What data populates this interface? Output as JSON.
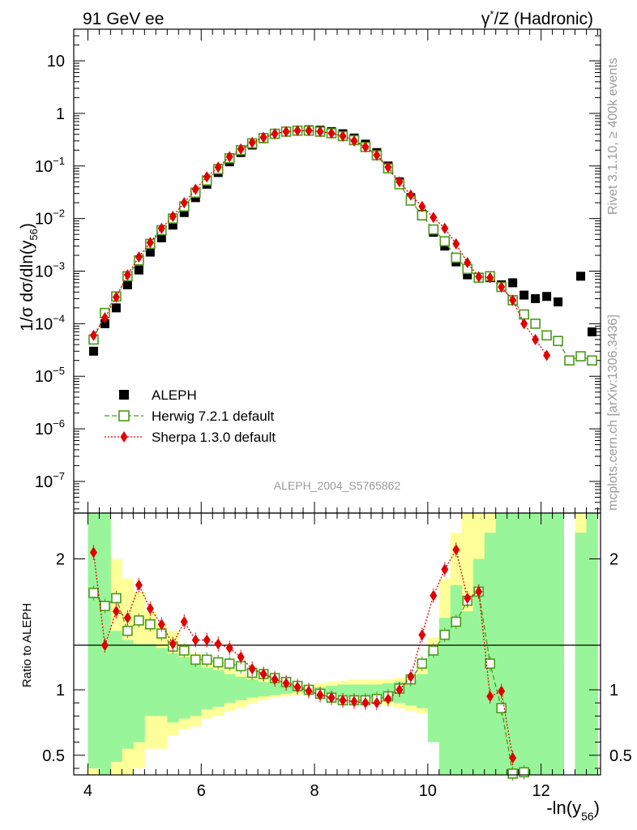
{
  "header": {
    "left": "91 GeV ee",
    "right_base": "γ",
    "right_sup": "*",
    "right_rest": "/Z (Hadronic)"
  },
  "side": {
    "rivet": "Rivet 3.1.10, ≥ 400k events",
    "site": "mcplots.cern.ch [arXiv:1306.3436]"
  },
  "analysis_tag": "ALEPH_2004_S5765862",
  "chart_data": [
    {
      "type": "scatter",
      "title": "",
      "ylabel": "1/σ dσ/dln(y56)",
      "ylabel_parts": {
        "main": "1/σ  dσ/dln(y",
        "sub": "56",
        "close": ")"
      },
      "yscale": "log",
      "xlim": [
        3.75,
        13.05
      ],
      "ylim": [
        2.5e-08,
        40
      ],
      "yticks": [
        {
          "v": 1e-07,
          "base": "10",
          "exp": "−7"
        },
        {
          "v": 1e-06,
          "base": "10",
          "exp": "−6"
        },
        {
          "v": 1e-05,
          "base": "10",
          "exp": "−5"
        },
        {
          "v": 0.0001,
          "base": "10",
          "exp": "−4"
        },
        {
          "v": 0.001,
          "base": "10",
          "exp": "−3"
        },
        {
          "v": 0.01,
          "base": "10",
          "exp": "−2"
        },
        {
          "v": 0.1,
          "base": "10",
          "exp": "−1"
        },
        {
          "v": 1,
          "base": "1",
          "exp": ""
        },
        {
          "v": 10,
          "base": "10",
          "exp": ""
        }
      ],
      "legend": [
        {
          "key": "aleph",
          "label": "ALEPH"
        },
        {
          "key": "herwig",
          "label": "Herwig 7.2.1 default"
        },
        {
          "key": "sherpa",
          "label": "Sherpa 1.3.0 default"
        }
      ],
      "series": [
        {
          "name": "ALEPH",
          "x": [
            4.1,
            4.3,
            4.5,
            4.7,
            4.9,
            5.1,
            5.3,
            5.5,
            5.7,
            5.9,
            6.1,
            6.3,
            6.5,
            6.7,
            6.9,
            7.1,
            7.3,
            7.5,
            7.7,
            7.9,
            8.1,
            8.3,
            8.5,
            8.7,
            8.9,
            9.1,
            9.3,
            9.5,
            9.7,
            9.9,
            10.1,
            10.3,
            10.5,
            10.7,
            10.9,
            11.1,
            11.3,
            11.5,
            11.7,
            11.9,
            12.1,
            12.3,
            12.7,
            12.9
          ],
          "y": [
            3e-05,
            0.0001,
            0.0002,
            0.00055,
            0.00105,
            0.0023,
            0.0043,
            0.0075,
            0.013,
            0.025,
            0.045,
            0.075,
            0.12,
            0.18,
            0.25,
            0.33,
            0.4,
            0.45,
            0.48,
            0.49,
            0.48,
            0.45,
            0.41,
            0.34,
            0.26,
            0.18,
            0.1,
            0.05,
            0.025,
            0.012,
            0.0055,
            0.003,
            0.0015,
            0.00085,
            0.00075,
            0.00075,
            0.00055,
            0.0006,
            0.00035,
            0.0003,
            0.00033,
            0.00026,
            0.0008,
            7e-05
          ]
        },
        {
          "name": "Herwig 7.2.1 default",
          "x": [
            4.1,
            4.3,
            4.5,
            4.7,
            4.9,
            5.1,
            5.3,
            5.5,
            5.7,
            5.9,
            6.1,
            6.3,
            6.5,
            6.7,
            6.9,
            7.1,
            7.3,
            7.5,
            7.7,
            7.9,
            8.1,
            8.3,
            8.5,
            8.7,
            8.9,
            9.1,
            9.3,
            9.5,
            9.7,
            9.9,
            10.1,
            10.3,
            10.5,
            10.7,
            10.9,
            11.1,
            11.3,
            11.5,
            11.7,
            11.9,
            12.1,
            12.3,
            12.5,
            12.7,
            12.9
          ],
          "y": [
            5e-05,
            0.00016,
            0.00033,
            0.0008,
            0.0016,
            0.0033,
            0.006,
            0.01,
            0.017,
            0.031,
            0.053,
            0.087,
            0.14,
            0.2,
            0.27,
            0.34,
            0.41,
            0.45,
            0.47,
            0.47,
            0.45,
            0.42,
            0.37,
            0.31,
            0.23,
            0.16,
            0.09,
            0.045,
            0.022,
            0.0115,
            0.0062,
            0.0037,
            0.0018,
            0.0011,
            0.00075,
            0.0008,
            0.0005,
            0.00028,
            0.00015,
            0.0001,
            6e-05,
            4.7e-05,
            2e-05,
            2.4e-05,
            2e-05
          ]
        },
        {
          "name": "Sherpa 1.3.0 default",
          "x": [
            4.1,
            4.3,
            4.5,
            4.7,
            4.9,
            5.1,
            5.3,
            5.5,
            5.7,
            5.9,
            6.1,
            6.3,
            6.5,
            6.7,
            6.9,
            7.1,
            7.3,
            7.5,
            7.7,
            7.9,
            8.1,
            8.3,
            8.5,
            8.7,
            8.9,
            9.1,
            9.3,
            9.5,
            9.7,
            9.9,
            10.1,
            10.3,
            10.5,
            10.7,
            10.9,
            11.1,
            11.3,
            11.5,
            11.7,
            11.9,
            12.1
          ],
          "y": [
            6e-05,
            0.00013,
            0.00032,
            0.00085,
            0.00185,
            0.0035,
            0.0065,
            0.011,
            0.02,
            0.036,
            0.062,
            0.095,
            0.15,
            0.21,
            0.28,
            0.35,
            0.41,
            0.45,
            0.47,
            0.47,
            0.45,
            0.42,
            0.37,
            0.3,
            0.23,
            0.16,
            0.095,
            0.05,
            0.028,
            0.017,
            0.0105,
            0.0065,
            0.0033,
            0.00145,
            0.00078,
            0.00075,
            0.0005,
            0.00028,
            0.0001,
            5e-05,
            2.5e-05
          ]
        }
      ]
    },
    {
      "type": "line",
      "xlabel": "-ln(y56)",
      "xlabel_parts": {
        "main": "-ln(y",
        "sub": "56",
        "close": ")"
      },
      "ylabel": "Ratio to ALEPH",
      "xlim": [
        3.75,
        13.05
      ],
      "ylim": [
        0.35,
        2.35
      ],
      "xticks": [
        {
          "v": 4,
          "label": "4"
        },
        {
          "v": 6,
          "label": "6"
        },
        {
          "v": 8,
          "label": "8"
        },
        {
          "v": 10,
          "label": "10"
        },
        {
          "v": 12,
          "label": "12"
        }
      ],
      "yticks": [
        {
          "v": 0.5,
          "label": "0.5"
        },
        {
          "v": 1,
          "label": "1"
        },
        {
          "v": 2,
          "label": "2"
        }
      ],
      "band_edges": [
        4.0,
        4.2,
        4.4,
        4.6,
        4.8,
        5.0,
        5.2,
        5.4,
        5.6,
        5.8,
        6.0,
        6.2,
        6.4,
        6.6,
        6.8,
        7.0,
        7.2,
        7.4,
        7.6,
        7.8,
        8.0,
        8.2,
        8.4,
        8.6,
        8.8,
        9.0,
        9.2,
        9.4,
        9.6,
        9.8,
        10.0,
        10.2,
        10.4,
        10.6,
        10.8,
        11.0,
        11.2,
        11.4,
        11.6,
        11.8,
        12.0,
        12.2,
        12.4,
        12.6,
        12.8,
        13.0
      ],
      "yellow_band": {
        "lo": [
          0.35,
          0.35,
          0.35,
          0.35,
          0.4,
          0.55,
          0.55,
          0.65,
          0.7,
          0.72,
          0.78,
          0.8,
          0.84,
          0.86,
          0.9,
          0.92,
          0.94,
          0.95,
          0.96,
          0.97,
          0.97,
          0.96,
          0.95,
          0.93,
          0.91,
          0.9,
          0.88,
          0.86,
          0.84,
          0.82,
          0.7,
          0.55,
          0.35,
          0.35,
          0.35,
          0.35,
          0.35,
          0.35,
          0.35,
          0.35,
          0.35,
          0.35,
          null,
          0.35,
          0.35
        ],
        "hi": [
          2.35,
          2.35,
          2.0,
          1.85,
          1.75,
          1.6,
          1.5,
          1.45,
          1.35,
          1.28,
          1.22,
          1.2,
          1.16,
          1.13,
          1.1,
          1.08,
          1.07,
          1.06,
          1.05,
          1.04,
          1.05,
          1.06,
          1.07,
          1.08,
          1.08,
          1.08,
          1.08,
          1.09,
          1.1,
          1.2,
          1.4,
          1.85,
          2.2,
          2.35,
          2.35,
          2.35,
          2.35,
          2.35,
          2.35,
          2.35,
          2.35,
          2.35,
          null,
          2.35,
          2.35
        ]
      },
      "green_band": {
        "lo": [
          0.4,
          0.35,
          0.45,
          0.55,
          0.6,
          0.8,
          0.8,
          0.75,
          0.78,
          0.8,
          0.85,
          0.87,
          0.9,
          0.92,
          0.94,
          0.95,
          0.96,
          0.97,
          0.98,
          0.98,
          0.98,
          0.97,
          0.96,
          0.95,
          0.94,
          0.93,
          0.92,
          0.9,
          0.88,
          0.86,
          0.6,
          0.35,
          0.35,
          0.35,
          0.35,
          0.35,
          0.35,
          0.35,
          0.35,
          0.35,
          0.35,
          0.35,
          null,
          0.35,
          0.35
        ],
        "hi": [
          2.35,
          2.35,
          1.45,
          1.38,
          1.35,
          1.35,
          1.32,
          1.28,
          1.25,
          1.2,
          1.17,
          1.15,
          1.12,
          1.1,
          1.08,
          1.06,
          1.05,
          1.04,
          1.03,
          1.02,
          1.02,
          1.03,
          1.04,
          1.04,
          1.04,
          1.04,
          1.05,
          1.06,
          1.08,
          1.12,
          1.3,
          1.55,
          1.8,
          1.6,
          2.0,
          2.2,
          2.35,
          2.35,
          2.35,
          2.35,
          2.35,
          2.35,
          null,
          2.2,
          2.35
        ]
      },
      "series": [
        {
          "name": "Herwig 7.2.1 default",
          "x": [
            4.1,
            4.3,
            4.5,
            4.7,
            4.9,
            5.1,
            5.3,
            5.5,
            5.7,
            5.9,
            6.1,
            6.3,
            6.5,
            6.7,
            6.9,
            7.1,
            7.3,
            7.5,
            7.7,
            7.9,
            8.1,
            8.3,
            8.5,
            8.7,
            8.9,
            9.1,
            9.3,
            9.5,
            9.7,
            9.9,
            10.1,
            10.3,
            10.5,
            10.7,
            10.9,
            11.1,
            11.3,
            11.5,
            11.7
          ],
          "y": [
            1.74,
            1.64,
            1.7,
            1.45,
            1.53,
            1.5,
            1.43,
            1.33,
            1.3,
            1.23,
            1.23,
            1.21,
            1.2,
            1.18,
            1.13,
            1.12,
            1.09,
            1.06,
            1.03,
            1.0,
            0.97,
            0.94,
            0.92,
            0.92,
            0.92,
            0.93,
            0.95,
            1.01,
            1.08,
            1.2,
            1.3,
            1.42,
            1.52,
            1.68,
            1.75,
            1.2,
            0.86,
            0.36,
            0.37
          ]
        },
        {
          "name": "Sherpa 1.3.0 default",
          "x": [
            4.1,
            4.3,
            4.5,
            4.7,
            4.9,
            5.1,
            5.3,
            5.5,
            5.7,
            5.9,
            6.1,
            6.3,
            6.5,
            6.7,
            6.9,
            7.1,
            7.3,
            7.5,
            7.7,
            7.9,
            8.1,
            8.3,
            8.5,
            8.7,
            8.9,
            9.1,
            9.3,
            9.5,
            9.7,
            9.9,
            10.1,
            10.3,
            10.5,
            10.7,
            10.9,
            11.1,
            11.3,
            11.5
          ],
          "y": [
            2.05,
            1.34,
            1.6,
            1.55,
            1.8,
            1.62,
            1.5,
            1.35,
            1.52,
            1.38,
            1.38,
            1.35,
            1.32,
            1.25,
            1.16,
            1.12,
            1.08,
            1.05,
            1.02,
            0.99,
            0.96,
            0.94,
            0.92,
            0.91,
            0.9,
            0.9,
            0.93,
            1.0,
            1.1,
            1.42,
            1.72,
            1.92,
            2.07,
            1.7,
            1.75,
            0.95,
            0.99,
            0.48
          ]
        }
      ]
    }
  ]
}
